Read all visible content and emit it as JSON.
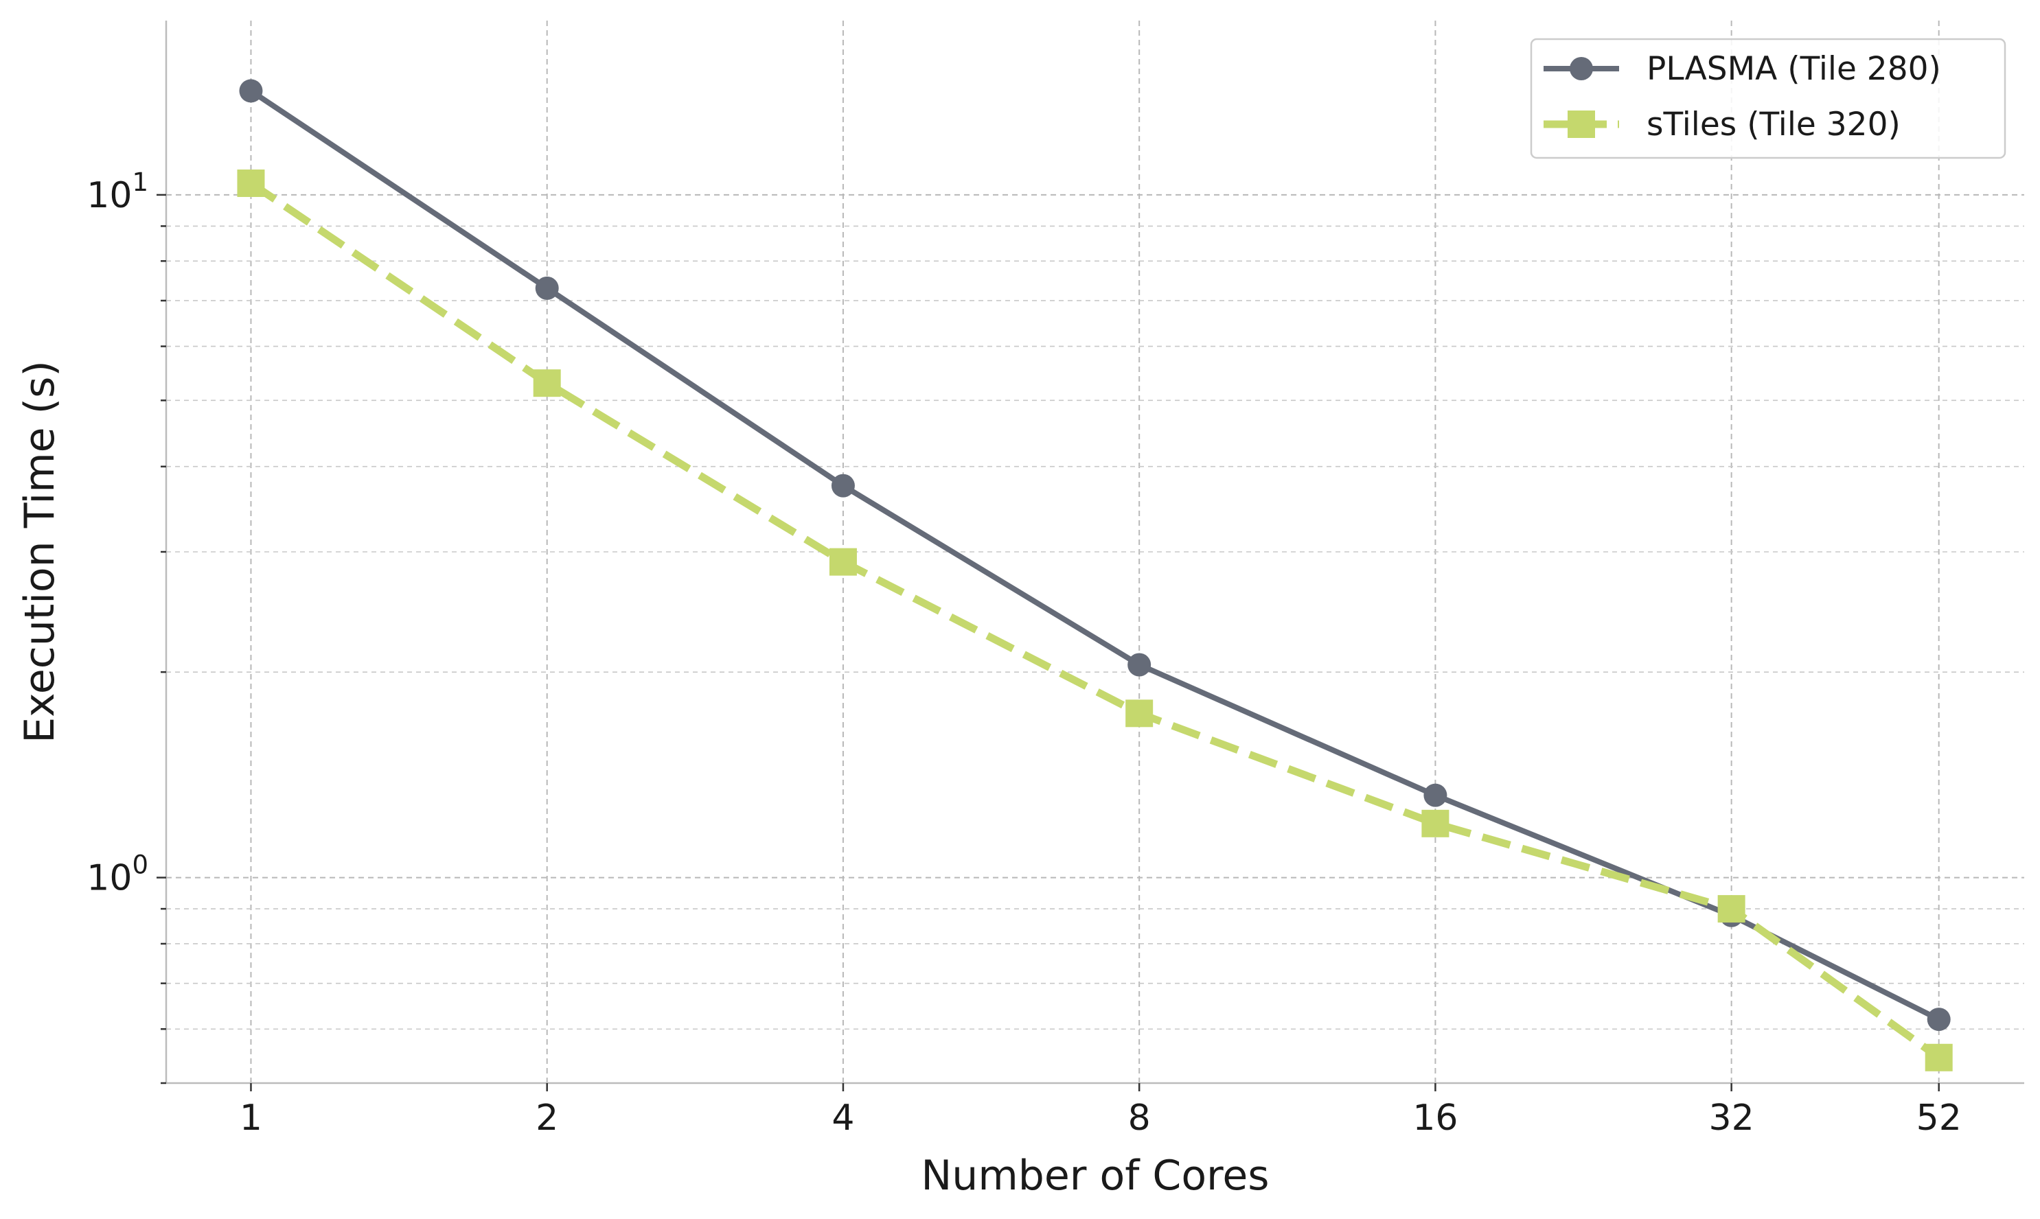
{
  "chart_data": {
    "type": "line",
    "title": "",
    "xlabel": "Number of Cores",
    "ylabel": "Execution Time (s)",
    "x_scale": "log2",
    "y_scale": "log10",
    "x": [
      1,
      2,
      4,
      8,
      16,
      32,
      52
    ],
    "x_tick_labels": [
      "1",
      "2",
      "4",
      "8",
      "16",
      "32",
      "52"
    ],
    "y_major_ticks": [
      {
        "value": 1,
        "base": "10",
        "exp": "0"
      },
      {
        "value": 10,
        "base": "10",
        "exp": "1"
      }
    ],
    "ylim": [
      0.5,
      18
    ],
    "xlim": [
      0.82,
      63.5
    ],
    "grid": true,
    "legend_position": "upper-right",
    "series": [
      {
        "name": "PLASMA (Tile 280)",
        "color": "#656b78",
        "marker": "circle",
        "line_style": "solid",
        "values": [
          14.2,
          7.3,
          3.75,
          2.05,
          1.32,
          0.88,
          0.62
        ]
      },
      {
        "name": "sTiles (Tile 320)",
        "color": "#c5d86d",
        "marker": "square",
        "line_style": "dashed",
        "values": [
          10.4,
          5.3,
          2.9,
          1.74,
          1.2,
          0.9,
          0.545
        ]
      }
    ]
  }
}
